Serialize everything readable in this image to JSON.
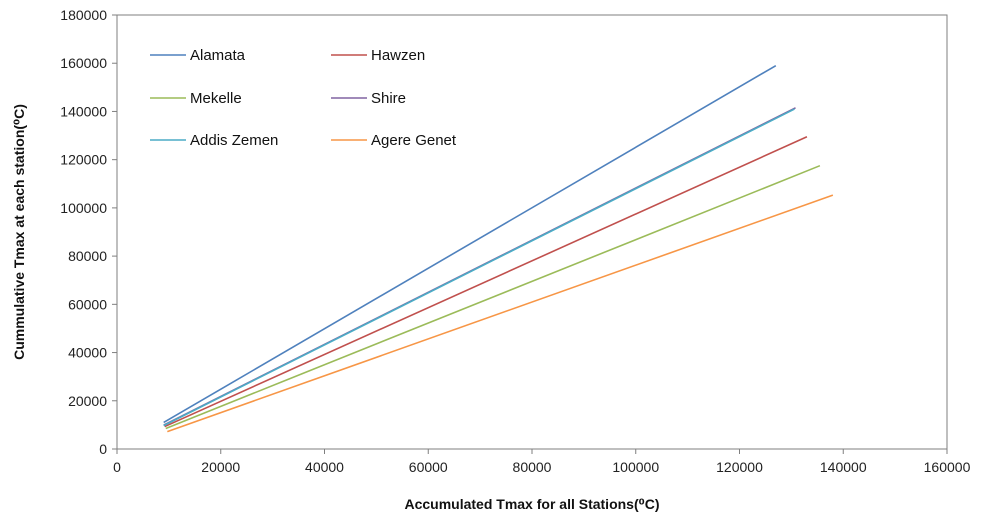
{
  "chart_data": {
    "type": "line",
    "title": "",
    "xlabel": "Accumulated Tmax for all Stations(⁰C)",
    "ylabel": "Cummulative Tmax at each station(⁰C)",
    "xlim": [
      0,
      160000
    ],
    "ylim": [
      0,
      180000
    ],
    "xticks": [
      0,
      20000,
      40000,
      60000,
      80000,
      100000,
      120000,
      140000,
      160000
    ],
    "yticks": [
      0,
      20000,
      40000,
      60000,
      80000,
      100000,
      120000,
      140000,
      160000,
      180000
    ],
    "grid": false,
    "legend_position": "top-left",
    "series": [
      {
        "name": "Alamata",
        "color": "#4f81bd",
        "x": [
          9000,
          127000
        ],
        "y": [
          11000,
          159000
        ]
      },
      {
        "name": "Hawzen",
        "color": "#c0504d",
        "x": [
          9200,
          133000
        ],
        "y": [
          9300,
          129500
        ]
      },
      {
        "name": "Mekelle",
        "color": "#9bbb59",
        "x": [
          9400,
          135500
        ],
        "y": [
          8500,
          117500
        ]
      },
      {
        "name": "Shire",
        "color": "#8064a2",
        "x": [
          9000,
          130800
        ],
        "y": [
          9900,
          141500
        ]
      },
      {
        "name": "Addis Zemen",
        "color": "#4bacc6",
        "x": [
          9000,
          130600
        ],
        "y": [
          9700,
          141000
        ]
      },
      {
        "name": "Agere Genet",
        "color": "#f79646",
        "x": [
          9700,
          138000
        ],
        "y": [
          7200,
          105300
        ]
      }
    ]
  }
}
